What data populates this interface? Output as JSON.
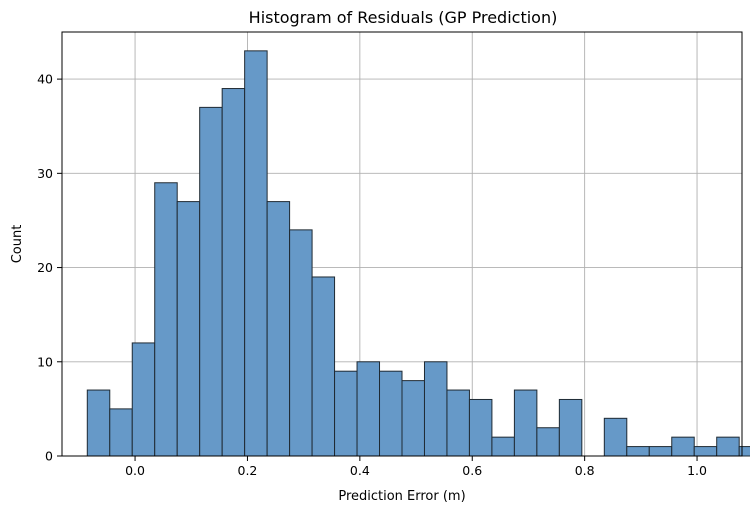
{
  "chart_data": {
    "type": "bar",
    "title": "Histogram of Residuals (GP Prediction)",
    "xlabel": "Prediction Error (m)",
    "ylabel": "Count",
    "xlim": [
      -0.13,
      1.08
    ],
    "ylim": [
      0,
      45
    ],
    "xticks": [
      0.0,
      0.2,
      0.4,
      0.6,
      0.8,
      1.0
    ],
    "xtick_labels": [
      "0.0",
      "0.2",
      "0.4",
      "0.6",
      "0.8",
      "1.0"
    ],
    "yticks": [
      0,
      10,
      20,
      30,
      40
    ],
    "ytick_labels": [
      "0",
      "10",
      "20",
      "30",
      "40"
    ],
    "grid": true,
    "bar_color": "#6699c8",
    "bar_edge_color": "#1f2a33",
    "bins": {
      "start": -0.085,
      "width": 0.04,
      "counts": [
        7,
        5,
        12,
        29,
        27,
        37,
        39,
        43,
        27,
        24,
        19,
        9,
        10,
        9,
        8,
        10,
        7,
        6,
        2,
        7,
        3,
        6,
        0,
        4,
        1,
        1,
        2,
        1,
        2,
        1
      ]
    }
  }
}
